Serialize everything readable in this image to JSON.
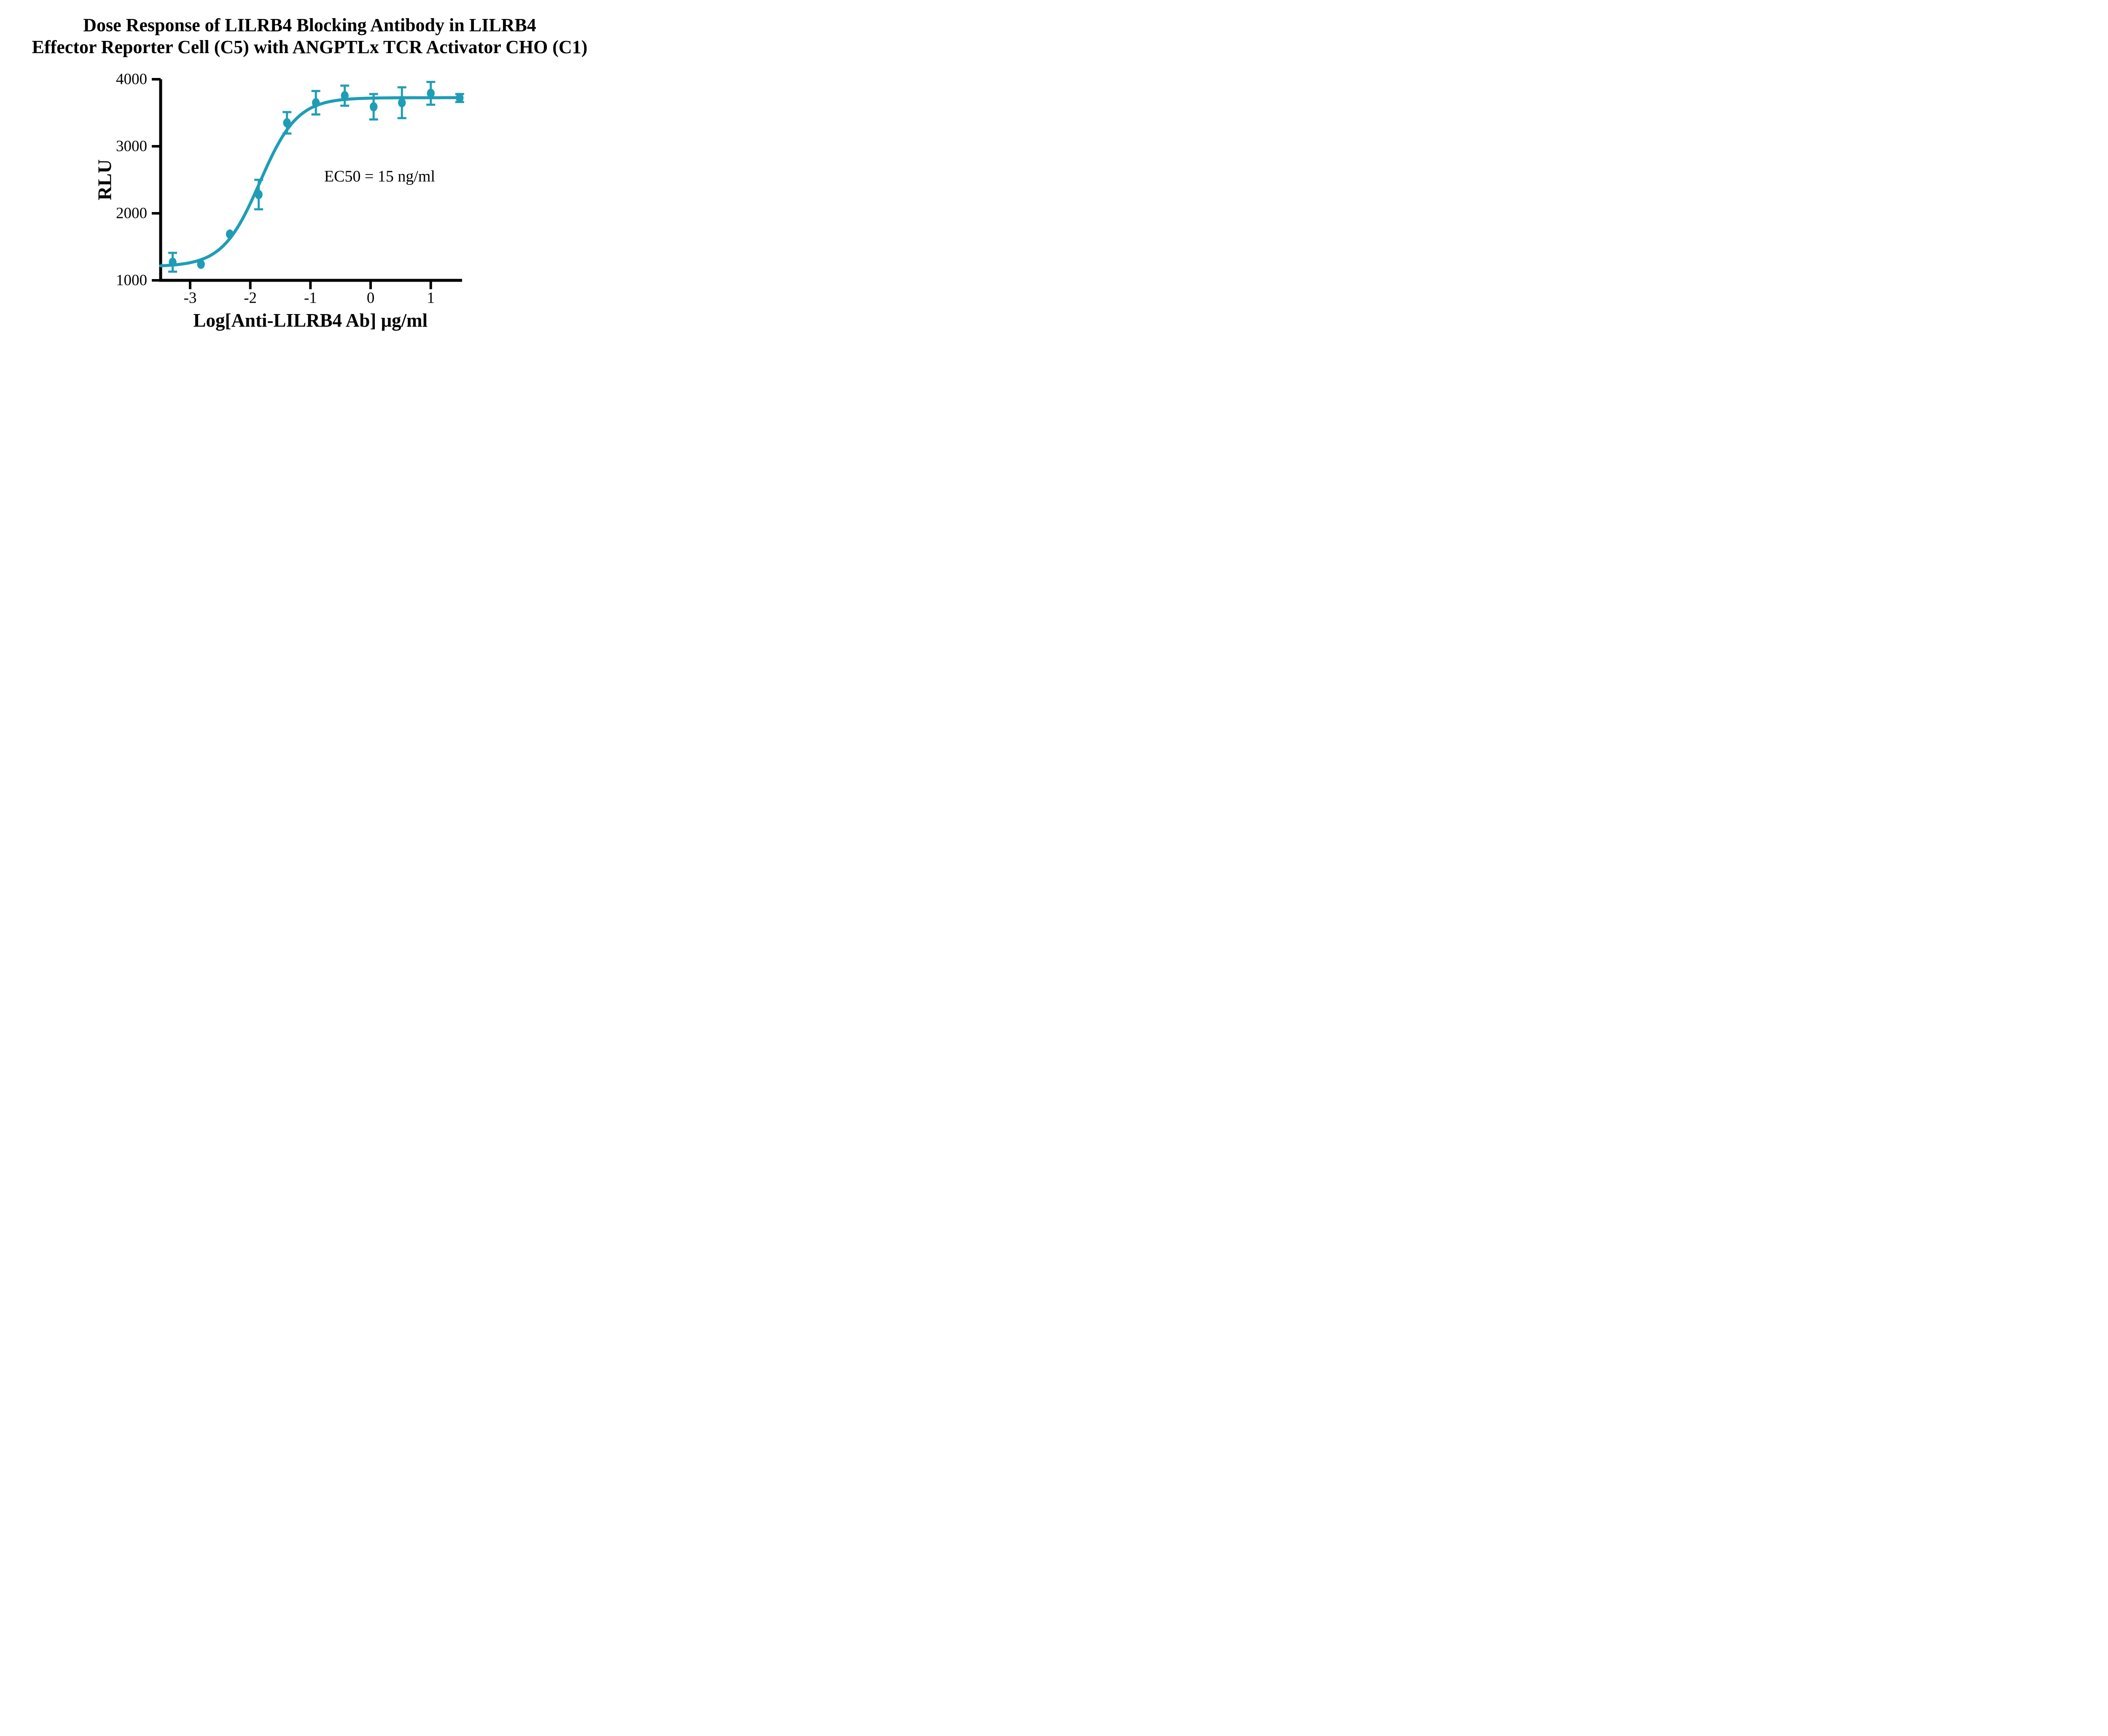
{
  "title": {
    "line1": "Dose Response of LILRB4 Blocking Antibody in LILRB4",
    "line2": "Effector Reporter Cell (C5) with ANGPTLx TCR Activator CHO (C1)"
  },
  "colors": {
    "series": "#1F9DB5",
    "axis": "#000000",
    "text": "#000000",
    "background": "#FFFFFF"
  },
  "chart_data": {
    "type": "scatter",
    "title": "Dose Response of LILRB4 Blocking Antibody in LILRB4 Effector Reporter Cell (C5) with ANGPTLx TCR Activator CHO (C1)",
    "xlabel": "Log[Anti-LILRB4 Ab] μg/ml",
    "ylabel": "RLU",
    "xlim": [
      -3.49,
      1.52
    ],
    "ylim": [
      1000,
      4000
    ],
    "x_ticks": [
      -3,
      -2,
      -1,
      0,
      1
    ],
    "y_ticks": [
      1000,
      2000,
      3000,
      4000
    ],
    "grid": false,
    "legend": false,
    "series": [
      {
        "name": "Anti-LILRB4 Ab",
        "x": [
          -3.29,
          -2.82,
          -2.34,
          -1.86,
          -1.39,
          -0.91,
          -0.43,
          0.05,
          0.52,
          1.0,
          1.48
        ],
        "y": [
          1270,
          1240,
          1690,
          2280,
          3350,
          3650,
          3755,
          3590,
          3650,
          3790,
          3720
        ],
        "sd": [
          140,
          0,
          0,
          220,
          160,
          175,
          150,
          190,
          230,
          170,
          60
        ]
      }
    ],
    "fit_curve": {
      "model": "4PL",
      "bottom": 1205,
      "top": 3725,
      "log_ec50": -1.84,
      "hill": 1.4,
      "x_start": -3.49,
      "x_end": 1.48
    },
    "annotations": [
      {
        "text": "EC50 = 15 ng/ml",
        "x": 0.15,
        "y": 2550
      }
    ]
  }
}
